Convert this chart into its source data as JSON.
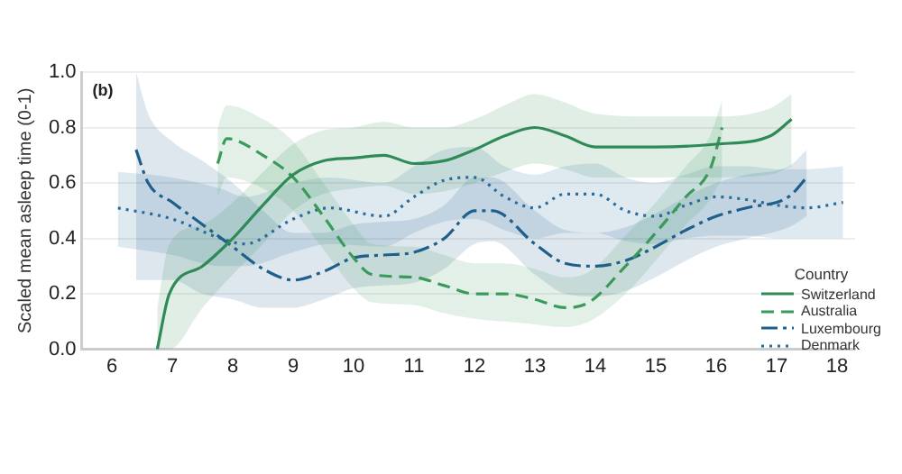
{
  "chart_data": {
    "type": "line",
    "ylabel": "Scaled mean asleep time (0-1)",
    "legend_title": "Country",
    "annotations": [
      "(b)"
    ],
    "xlim": [
      5.5,
      18.3
    ],
    "xticks": [
      6,
      7,
      8,
      9,
      10,
      11,
      12,
      13,
      14,
      15,
      16,
      17,
      18
    ],
    "ylim": [
      0,
      1
    ],
    "yticks": [
      {
        "value": 0,
        "label": "0.0"
      },
      0.2,
      0.4,
      0.6,
      0.8,
      {
        "value": 1,
        "label": "1.0"
      }
    ],
    "grid": "y",
    "legend": "bottom right",
    "marker": "none",
    "series": [
      {
        "name": "Switzerland",
        "color": "#2e8b57",
        "line_style": "solid",
        "x": [
          6.75,
          6.95,
          7.5,
          8,
          8.5,
          9,
          9.5,
          10,
          10.5,
          11,
          11.5,
          12,
          12.5,
          13,
          13.5,
          14,
          15,
          16,
          16.9,
          17.25
        ],
        "values": [
          0,
          0.2,
          0.3,
          0.4,
          0.52,
          0.63,
          0.68,
          0.69,
          0.7,
          0.67,
          0.68,
          0.72,
          0.77,
          0.8,
          0.77,
          0.73,
          0.73,
          0.74,
          0.77,
          0.83
        ],
        "lower": [
          0,
          0,
          0.15,
          0.27,
          0.38,
          0.5,
          0.56,
          0.58,
          0.59,
          0.56,
          0.57,
          0.6,
          0.64,
          0.67,
          0.65,
          0.62,
          0.62,
          0.62,
          0.63,
          0.66
        ],
        "upper": [
          0.15,
          0.38,
          0.45,
          0.53,
          0.64,
          0.74,
          0.79,
          0.8,
          0.82,
          0.8,
          0.8,
          0.83,
          0.88,
          0.92,
          0.89,
          0.85,
          0.84,
          0.84,
          0.87,
          0.92
        ]
      },
      {
        "name": "Australia",
        "color": "#3a9a5c",
        "line_style": "dashed",
        "x": [
          7.75,
          7.9,
          8.5,
          9,
          9.5,
          10,
          10.3,
          11,
          11.5,
          12,
          12.5,
          13,
          13.5,
          13.9,
          14.5,
          15,
          15.5,
          15.9,
          16.1
        ],
        "values": [
          0.67,
          0.76,
          0.7,
          0.62,
          0.48,
          0.33,
          0.27,
          0.26,
          0.23,
          0.2,
          0.2,
          0.18,
          0.15,
          0.17,
          0.3,
          0.42,
          0.55,
          0.65,
          0.8
        ],
        "lower": [
          0.55,
          0.62,
          0.58,
          0.5,
          0.36,
          0.22,
          0.17,
          0.16,
          0.13,
          0.11,
          0.1,
          0.09,
          0.08,
          0.1,
          0.2,
          0.32,
          0.45,
          0.54,
          0.62
        ],
        "upper": [
          0.8,
          0.88,
          0.83,
          0.75,
          0.6,
          0.45,
          0.38,
          0.37,
          0.34,
          0.31,
          0.31,
          0.29,
          0.26,
          0.28,
          0.41,
          0.53,
          0.66,
          0.77,
          0.9
        ]
      },
      {
        "name": "Luxembourg",
        "color": "#1f5f8b",
        "line_style": "dashdot",
        "x": [
          6.4,
          6.6,
          7,
          7.5,
          8,
          8.5,
          9,
          9.5,
          10,
          10.5,
          11,
          11.5,
          12,
          12.3,
          13,
          13.5,
          14,
          14.5,
          15,
          15.5,
          16,
          16.5,
          17.2,
          17.5
        ],
        "values": [
          0.72,
          0.6,
          0.53,
          0.45,
          0.37,
          0.29,
          0.25,
          0.28,
          0.33,
          0.34,
          0.35,
          0.4,
          0.5,
          0.5,
          0.38,
          0.31,
          0.3,
          0.32,
          0.37,
          0.43,
          0.48,
          0.51,
          0.55,
          0.62
        ],
        "lower": [
          0.25,
          0.25,
          0.25,
          0.2,
          0.18,
          0.15,
          0.15,
          0.18,
          0.22,
          0.23,
          0.24,
          0.29,
          0.38,
          0.39,
          0.27,
          0.2,
          0.19,
          0.21,
          0.26,
          0.32,
          0.37,
          0.4,
          0.44,
          0.48
        ],
        "upper": [
          1,
          0.85,
          0.75,
          0.68,
          0.6,
          0.5,
          0.42,
          0.42,
          0.45,
          0.46,
          0.47,
          0.52,
          0.62,
          0.62,
          0.5,
          0.43,
          0.42,
          0.44,
          0.49,
          0.55,
          0.6,
          0.63,
          0.66,
          0.72
        ]
      },
      {
        "name": "Denmark",
        "color": "#2a6a9a",
        "line_style": "dotted",
        "x": [
          6.1,
          7,
          7.8,
          8.2,
          9,
          9.6,
          10.5,
          11,
          11.5,
          12,
          12.5,
          13,
          13.5,
          14,
          14.5,
          15,
          15.5,
          16,
          16.5,
          17,
          17.5,
          18.1
        ],
        "values": [
          0.51,
          0.47,
          0.4,
          0.38,
          0.47,
          0.51,
          0.48,
          0.55,
          0.61,
          0.62,
          0.55,
          0.51,
          0.56,
          0.56,
          0.5,
          0.48,
          0.52,
          0.55,
          0.54,
          0.52,
          0.51,
          0.53
        ],
        "lower": [
          0.37,
          0.34,
          0.3,
          0.3,
          0.35,
          0.38,
          0.37,
          0.42,
          0.46,
          0.47,
          0.43,
          0.4,
          0.42,
          0.42,
          0.39,
          0.38,
          0.4,
          0.41,
          0.41,
          0.4,
          0.4,
          0.4
        ],
        "upper": [
          0.64,
          0.62,
          0.58,
          0.55,
          0.6,
          0.62,
          0.6,
          0.66,
          0.72,
          0.73,
          0.66,
          0.63,
          0.66,
          0.67,
          0.62,
          0.6,
          0.63,
          0.66,
          0.66,
          0.65,
          0.65,
          0.66
        ]
      }
    ]
  }
}
